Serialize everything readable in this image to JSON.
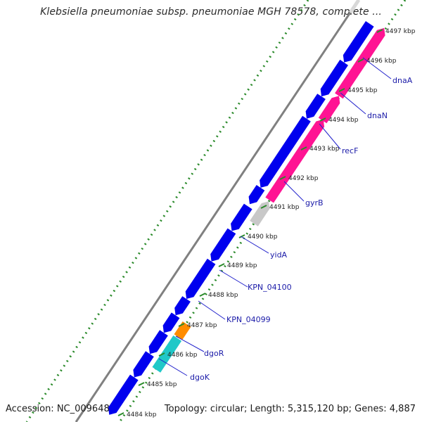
{
  "title": "Klebsiella pneumoniae subsp. pneumoniae MGH 78578, complete ...",
  "accession": "Accession: NC_009648",
  "summary": "Topology: circular; Length: 5,315,120 bp; Genes: 4,887",
  "colors": {
    "backbone": "#808080",
    "forward_cds": "#0000ee",
    "reverse_cds": "#ff1493",
    "grey_feature": "#c8c8c8",
    "orange_feature": "#ff8c00",
    "cyan_feature": "#20c8c8",
    "gc_dots": "#2a8a2a",
    "label_text": "#1a1aa8",
    "leader_line": "#2222cc"
  },
  "ticks": [
    {
      "label": "4497 kbp"
    },
    {
      "label": "4496 kbp"
    },
    {
      "label": "4495 kbp"
    },
    {
      "label": "4494 kbp"
    },
    {
      "label": "4493 kbp"
    },
    {
      "label": "4492 kbp"
    },
    {
      "label": "4491 kbp"
    },
    {
      "label": "4490 kbp"
    },
    {
      "label": "4489 kbp"
    },
    {
      "label": "4488 kbp"
    },
    {
      "label": "4487 kbp"
    },
    {
      "label": "4486 kbp"
    },
    {
      "label": "4485 kbp"
    },
    {
      "label": "4484 kbp"
    }
  ],
  "genes": [
    {
      "name": "dnaA"
    },
    {
      "name": "dnaN"
    },
    {
      "name": "recF"
    },
    {
      "name": "gyrB"
    },
    {
      "name": "yidA"
    },
    {
      "name": "KPN_04100"
    },
    {
      "name": "KPN_04099"
    },
    {
      "name": "dgoR"
    },
    {
      "name": "dgoK"
    }
  ]
}
